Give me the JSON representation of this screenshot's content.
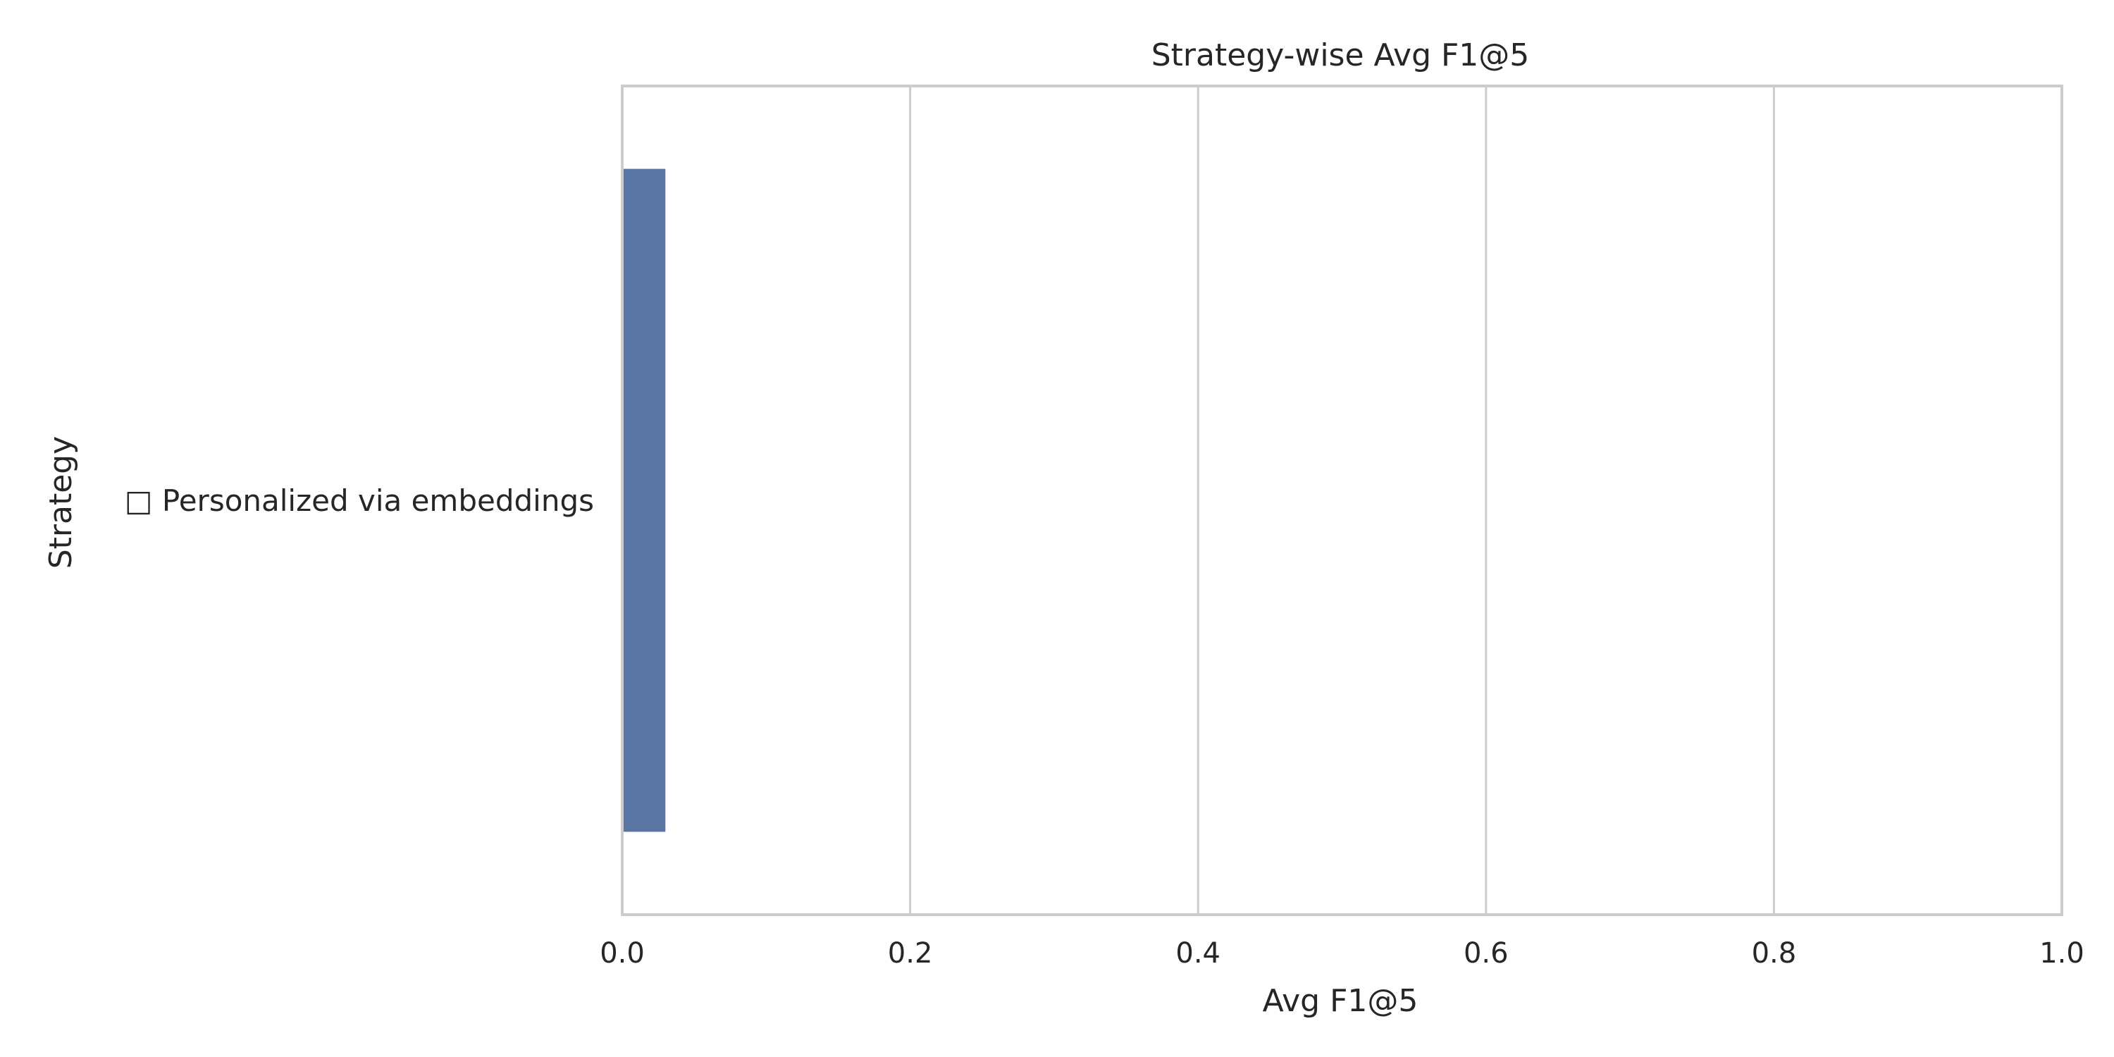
{
  "chart_data": {
    "type": "bar",
    "orientation": "horizontal",
    "title": "Strategy-wise Avg F1@5",
    "xlabel": "Avg F1@5",
    "ylabel": "Strategy",
    "categories": [
      "□ Personalized via embeddings"
    ],
    "values": [
      0.03
    ],
    "xlim": [
      0.0,
      1.0
    ],
    "xticks": [
      0.0,
      0.2,
      0.4,
      0.6,
      0.8,
      1.0
    ],
    "xtick_labels": [
      "0.0",
      "0.2",
      "0.4",
      "0.6",
      "0.8",
      "1.0"
    ],
    "grid": "vertical",
    "bar_color": "#5975a4",
    "grid_color": "#cccccc"
  }
}
